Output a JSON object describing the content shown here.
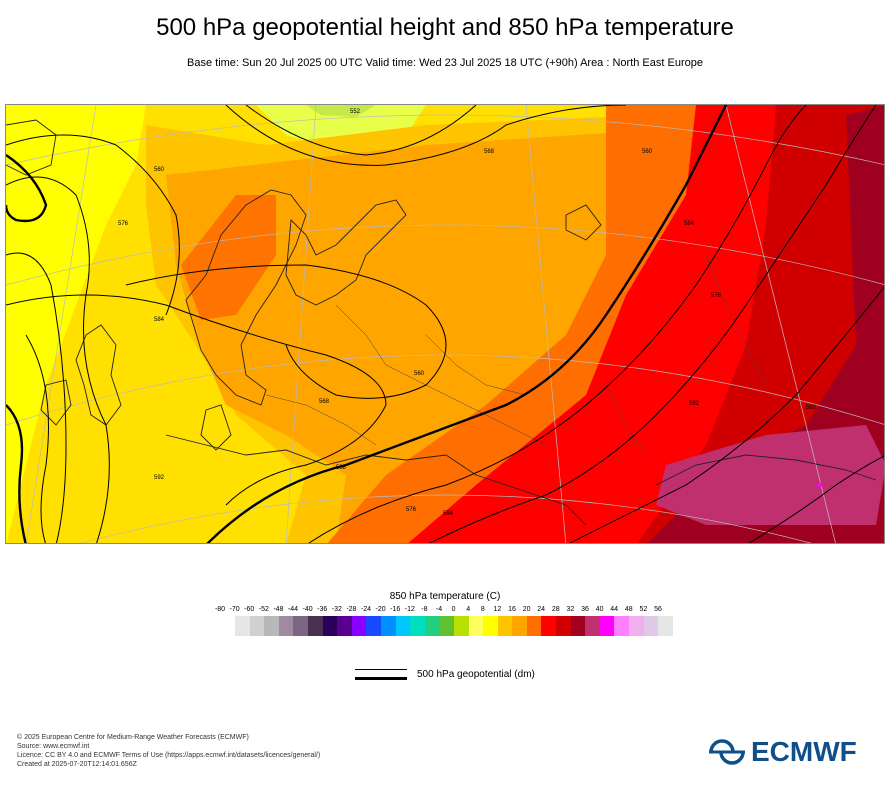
{
  "header": {
    "title": "500 hPa geopotential height and 850 hPa temperature",
    "subtitle": "Base time: Sun 20 Jul 2025 00 UTC Valid time: Wed 23 Jul 2025 18 UTC (+90h) Area : North East Europe"
  },
  "map": {
    "contour_labels": [
      "552",
      "568",
      "560",
      "576",
      "584",
      "592",
      "568",
      "560",
      "584",
      "576",
      "568",
      "560",
      "576",
      "584",
      "592",
      "592"
    ],
    "colors": {
      "t8_12": "#ffe000",
      "t12_16": "#ffc400",
      "t16_20": "#ffa500",
      "t20_24": "#ff6e00",
      "t24_28": "#ff0000",
      "t28_32": "#d00000",
      "t32_36": "#b00020",
      "t36_40": "#c0306e",
      "t4_8": "#ffff00",
      "t0_4": "#e8ff4a",
      "t_4_0": "#c5e84a"
    }
  },
  "legend": {
    "title": "850 hPa temperature (C)",
    "ticks": [
      "-80",
      "-70",
      "-60",
      "-52",
      "-48",
      "-44",
      "-40",
      "-36",
      "-32",
      "-28",
      "-24",
      "-20",
      "-16",
      "-12",
      "-8",
      "-4",
      "0",
      "4",
      "8",
      "12",
      "16",
      "20",
      "24",
      "28",
      "32",
      "36",
      "40",
      "44",
      "48",
      "52",
      "56"
    ],
    "colors": [
      "#e6e6e6",
      "#d0d0d0",
      "#b8b8b8",
      "#a08aa0",
      "#7a6680",
      "#4a3050",
      "#2a005a",
      "#5a0090",
      "#8a00ff",
      "#1a4aff",
      "#0090ff",
      "#00c8ff",
      "#00e0c0",
      "#20d080",
      "#60c030",
      "#b8e000",
      "#ffff60",
      "#ffff00",
      "#ffc400",
      "#ffa500",
      "#ff6e00",
      "#ff0000",
      "#d00000",
      "#a00020",
      "#c0306e",
      "#ff00ff",
      "#ff80ff",
      "#f0b0f0",
      "#e0c8e8",
      "#e6e6e6"
    ]
  },
  "geo_legend": {
    "label": "500 hPa geopotential (dm)"
  },
  "footer": {
    "lines": [
      "© 2025 European Centre for Medium-Range Weather Forecasts (ECMWF)",
      "Source: www.ecmwf.int",
      "Licence: CC BY 4.0 and ECMWF Terms of Use (https://apps.ecmwf.int/datasets/licences/general/)",
      "Created at 2025-07-20T12:14:01.656Z"
    ]
  },
  "logo": {
    "text": "ECMWF",
    "color": "#0f4f8a"
  }
}
